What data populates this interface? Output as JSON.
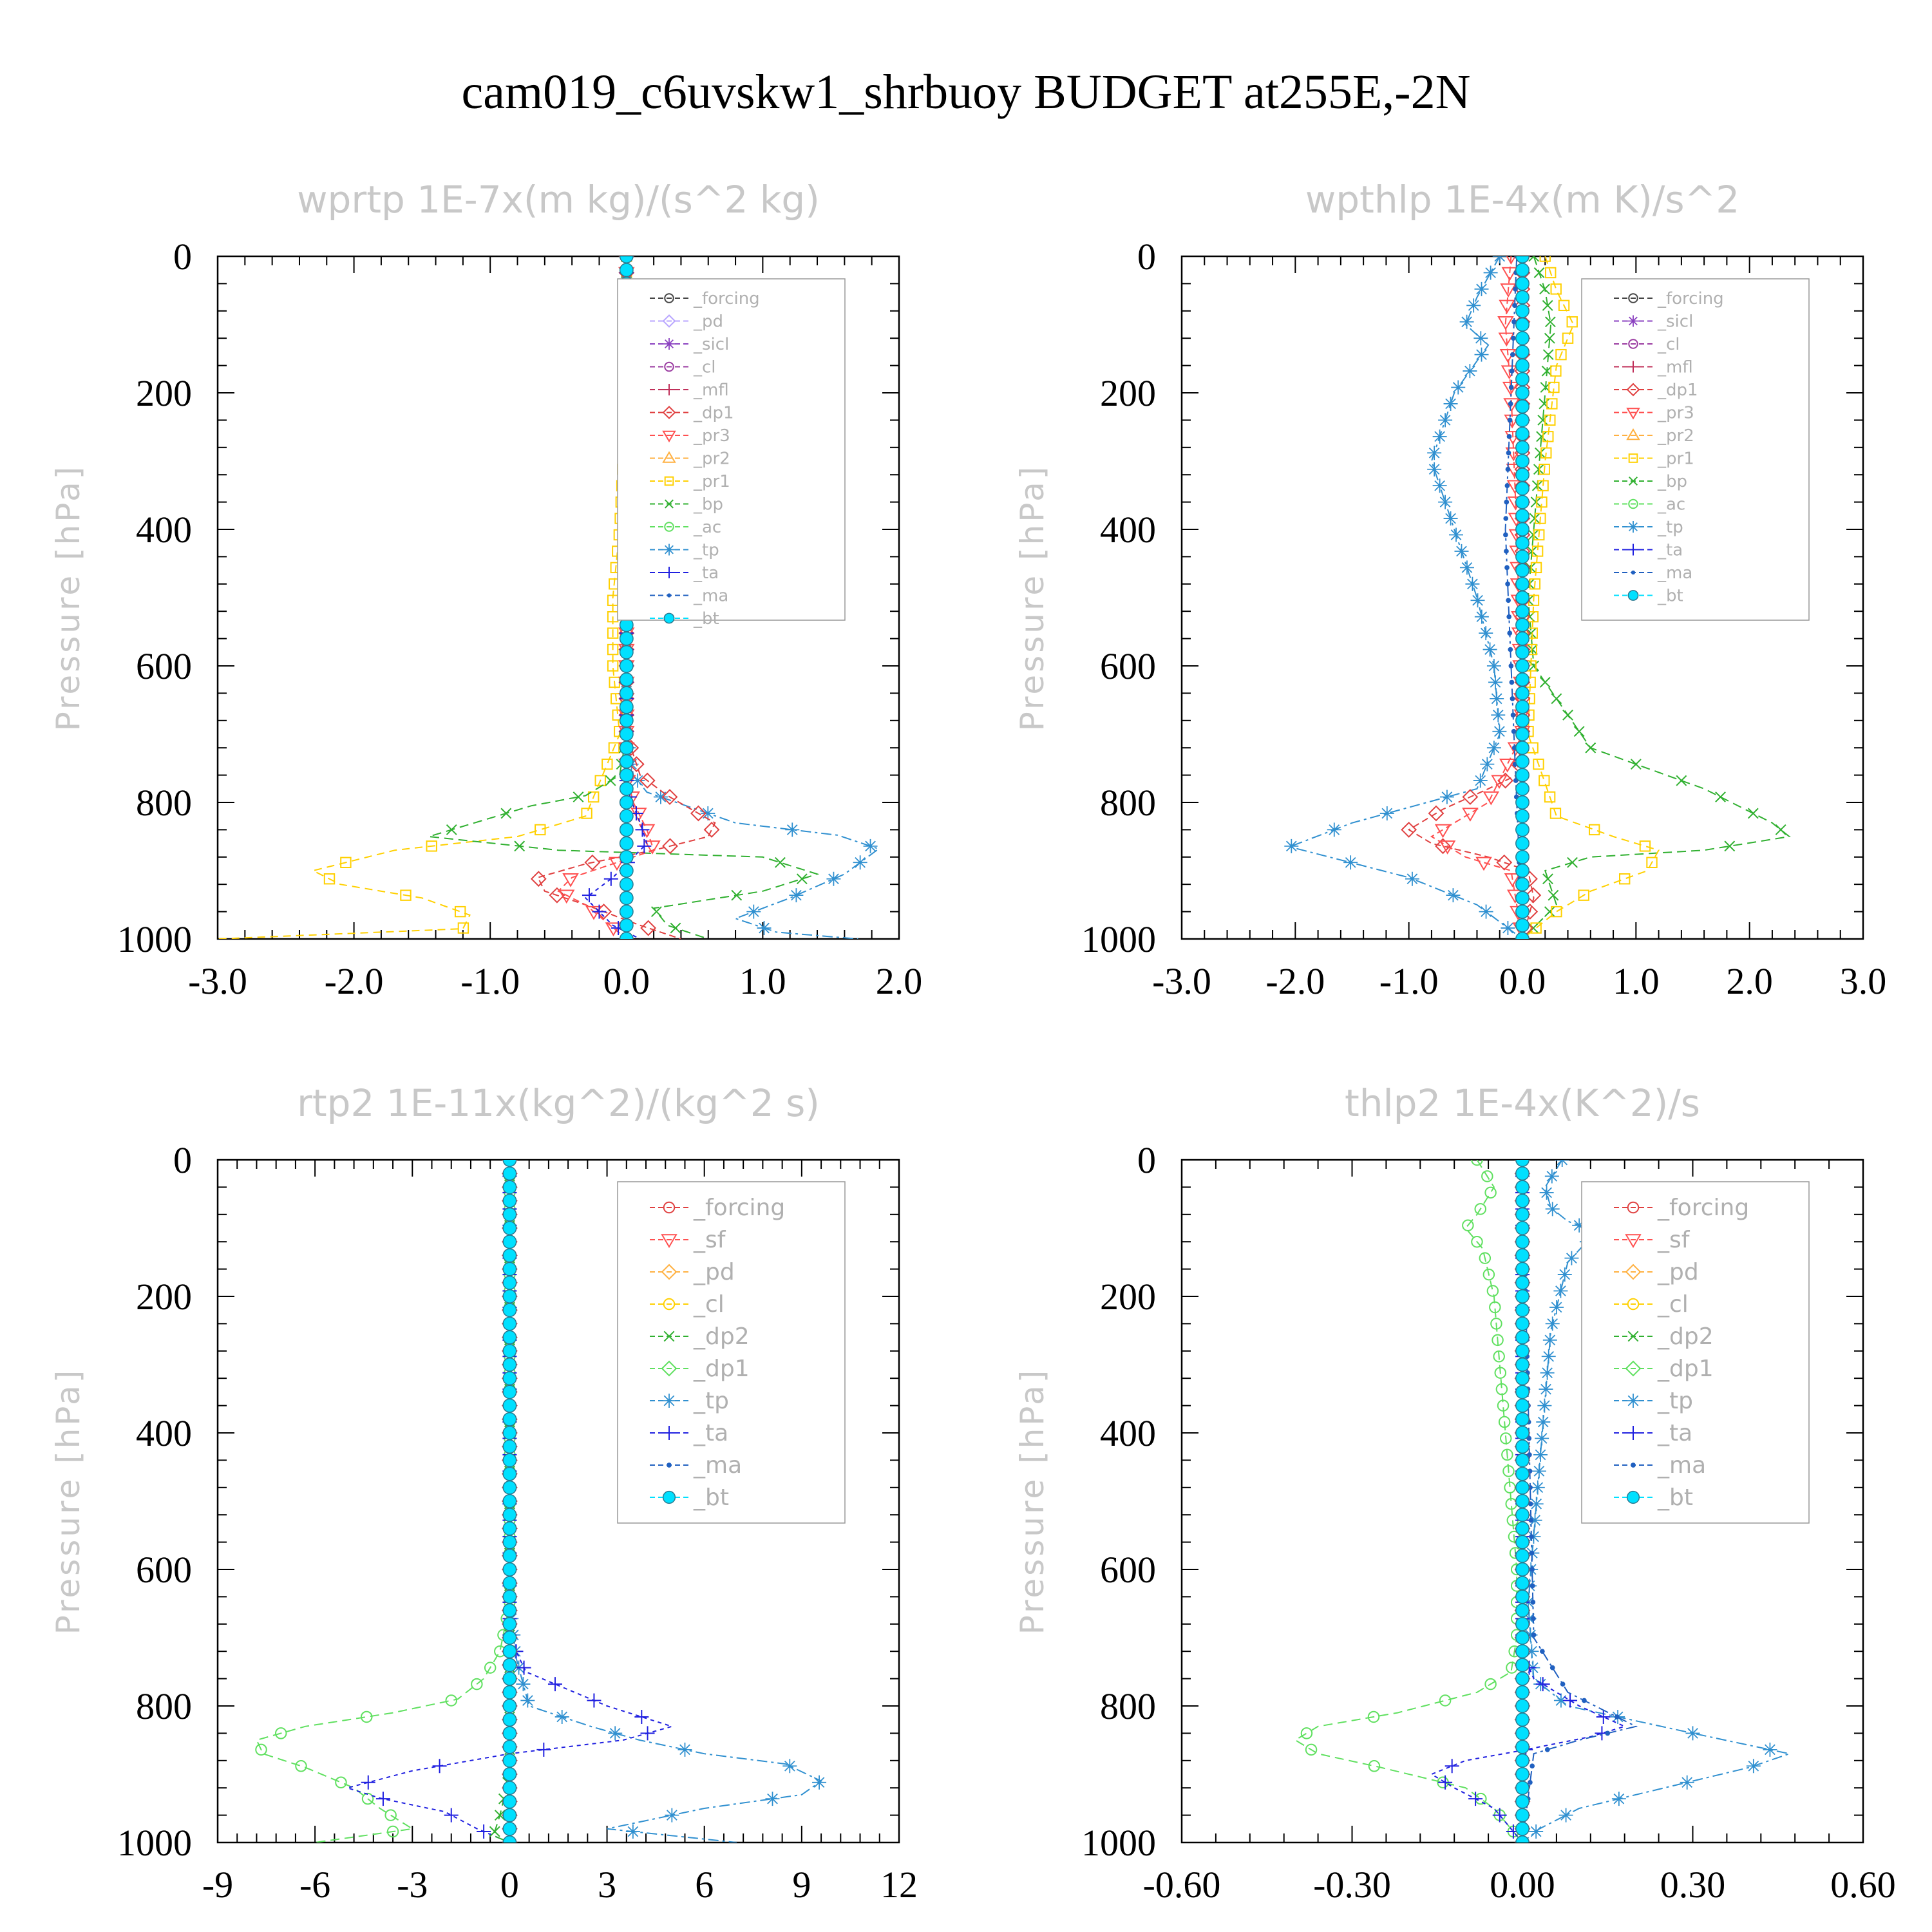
{
  "title": "cam019_c6uvskw1_shrbuoy  BUDGET at255E,-2N",
  "colors": {
    "forcing": "#444444",
    "pd": "#b9a6ff",
    "sicl": "#8a40c0",
    "cl": "#9a3aa0",
    "mfl": "#c0305a",
    "dp1": "#e04040",
    "pr3": "#ff5050",
    "pr2": "#ffb040",
    "pr1": "#ffd000",
    "bp": "#30b030",
    "ac": "#60e060",
    "tp": "#3090d0",
    "ta": "#2020e0",
    "ma": "#2060c0",
    "bt": "#00e0ff"
  },
  "chart_data": [
    {
      "type": "line",
      "title": "wprtp  1E-7x(m kg)/(s^2 kg)",
      "ylabel": "Pressure [hPa]",
      "xlim": [
        -3.0,
        2.0
      ],
      "ylim": [
        1000,
        0
      ],
      "xticks": [
        "-3.0",
        "-2.0",
        "-1.0",
        "0.0",
        "1.0",
        "2.0"
      ],
      "yticks": [
        "0",
        "200",
        "400",
        "600",
        "800",
        "1000"
      ],
      "legend": [
        "_forcing",
        "_pd",
        "_sicl",
        "_cl",
        "_mfl",
        "_dp1",
        "_pr3",
        "_pr2",
        "_pr1",
        "_bp",
        "_ac",
        "_tp",
        "_ta",
        "_ma",
        "_bt"
      ],
      "series": [
        {
          "name": "_pr1",
          "color": "pr1",
          "marker": "square",
          "dash": "12,8",
          "x": [
            0,
            0,
            -0.05,
            -0.1,
            -0.1,
            -0.05,
            -0.3,
            -0.8,
            -1.7,
            -2.3,
            -2.1,
            -1.5,
            -1.15,
            -1.2,
            -3.0
          ],
          "y": [
            0,
            200,
            400,
            500,
            600,
            700,
            820,
            850,
            870,
            900,
            920,
            940,
            965,
            985,
            1000
          ]
        },
        {
          "name": "_bp",
          "color": "bp",
          "marker": "x",
          "dash": "14,8",
          "x": [
            0,
            0,
            -0.05,
            -0.3,
            -0.7,
            -1.45,
            -0.5,
            1.0,
            1.4,
            1.0,
            0.2,
            0.3,
            0.6
          ],
          "y": [
            0,
            700,
            760,
            790,
            805,
            850,
            870,
            880,
            905,
            930,
            955,
            980,
            1000
          ]
        },
        {
          "name": "_tp",
          "color": "tp",
          "marker": "star",
          "dash": "16,6,4,6",
          "x": [
            0,
            0,
            0.05,
            0.15,
            0.8,
            1.55,
            1.85,
            1.6,
            1.2,
            0.8,
            1.1,
            1.7
          ],
          "y": [
            0,
            700,
            760,
            785,
            830,
            848,
            868,
            905,
            940,
            970,
            990,
            1000
          ]
        },
        {
          "name": "_dp1",
          "color": "dp1",
          "marker": "diamond",
          "dash": "10,6",
          "x": [
            0,
            0,
            0.1,
            0.3,
            0.65,
            0.6,
            0.2,
            -0.3,
            -0.65,
            -0.6,
            -0.3,
            0.1,
            0.4
          ],
          "y": [
            0,
            700,
            760,
            790,
            830,
            850,
            870,
            890,
            910,
            930,
            950,
            980,
            1000
          ]
        },
        {
          "name": "_pr3",
          "color": "pr3",
          "marker": "triangle-down",
          "dash": "10,6",
          "x": [
            0,
            0,
            0.05,
            0.15,
            0.2,
            -0.1,
            -0.4,
            -0.5,
            -0.3,
            0
          ],
          "y": [
            0,
            760,
            800,
            840,
            870,
            890,
            910,
            930,
            950,
            1000
          ]
        },
        {
          "name": "_ta",
          "color": "ta",
          "marker": "plus",
          "dash": "6,6",
          "x": [
            0,
            0,
            0.1,
            0.15,
            0.05,
            -0.1,
            -0.3,
            -0.2,
            -0.1,
            0.1
          ],
          "y": [
            0,
            780,
            830,
            860,
            880,
            910,
            940,
            960,
            980,
            1000
          ]
        },
        {
          "name": "_forcing",
          "color": "forcing",
          "marker": "circle-hollow",
          "dash": "",
          "x": [
            0,
            0
          ],
          "y": [
            0,
            1000
          ]
        },
        {
          "name": "_bt",
          "color": "bt",
          "marker": "circle-filled",
          "dash": "",
          "x": [
            0,
            0
          ],
          "y": [
            0,
            1000
          ]
        }
      ]
    },
    {
      "type": "line",
      "title": "wpthlp  1E-4x(m K)/s^2",
      "ylabel": "Pressure [hPa]",
      "xlim": [
        -3.0,
        3.0
      ],
      "ylim": [
        1000,
        0
      ],
      "xticks": [
        "-3.0",
        "-2.0",
        "-1.0",
        "0.0",
        "1.0",
        "2.0",
        "3.0"
      ],
      "yticks": [
        "0",
        "200",
        "400",
        "600",
        "800",
        "1000"
      ],
      "legend": [
        "_forcing",
        "_sicl",
        "_cl",
        "_mfl",
        "_dp1",
        "_pr3",
        "_pr2",
        "_pr1",
        "_bp",
        "_ac",
        "_tp",
        "_ta",
        "_ma",
        "_bt"
      ],
      "series": [
        {
          "name": "_tp",
          "color": "tp",
          "marker": "star",
          "dash": "16,6,4,6",
          "x": [
            -0.2,
            -0.4,
            -0.5,
            -0.3,
            -0.6,
            -0.8,
            -0.6,
            -0.4,
            -0.25,
            -0.2,
            -0.4,
            -1.5,
            -2.05,
            -1.7,
            -1.0,
            -0.4,
            0
          ],
          "y": [
            0,
            60,
            100,
            130,
            200,
            300,
            400,
            500,
            600,
            700,
            780,
            830,
            865,
            880,
            910,
            950,
            1000
          ]
        },
        {
          "name": "_bp",
          "color": "bp",
          "marker": "x",
          "dash": "14,8",
          "x": [
            0.1,
            0.2,
            0.25,
            0.2,
            0.15,
            0.1,
            0.05,
            0.1,
            0.6,
            1.6,
            2.2,
            2.35,
            1.6,
            0.6,
            0.2,
            0.3,
            0
          ],
          "y": [
            0,
            50,
            100,
            200,
            300,
            400,
            500,
            600,
            720,
            780,
            830,
            850,
            870,
            880,
            900,
            950,
            1000
          ]
        },
        {
          "name": "_pr1",
          "color": "pr1",
          "marker": "square",
          "dash": "12,8",
          "x": [
            0.2,
            0.3,
            0.45,
            0.3,
            0.2,
            0.15,
            0.1,
            0.05,
            0.3,
            0.8,
            1.2,
            1.1,
            0.6,
            0.3,
            0
          ],
          "y": [
            0,
            50,
            100,
            160,
            300,
            400,
            500,
            700,
            820,
            850,
            870,
            900,
            930,
            960,
            1000
          ]
        },
        {
          "name": "_dp1",
          "color": "dp1",
          "marker": "diamond",
          "dash": "10,6",
          "x": [
            0,
            0,
            -0.05,
            -0.3,
            -0.7,
            -1.0,
            -0.8,
            -0.3,
            0.05,
            0.1,
            0
          ],
          "y": [
            0,
            700,
            760,
            780,
            810,
            840,
            860,
            880,
            900,
            940,
            1000
          ]
        },
        {
          "name": "_pr3",
          "color": "pr3",
          "marker": "triangle-down",
          "dash": "10,6",
          "x": [
            -0.1,
            -0.15,
            -0.1,
            -0.05,
            0,
            -0.3,
            -0.8,
            -0.5,
            -0.1,
            0
          ],
          "y": [
            0,
            100,
            200,
            400,
            700,
            800,
            850,
            880,
            900,
            1000
          ]
        },
        {
          "name": "_ma",
          "color": "ma",
          "marker": "dot",
          "dash": "16,6,4,6",
          "x": [
            -0.05,
            -0.1,
            -0.15,
            -0.1,
            -0.05,
            0
          ],
          "y": [
            0,
            200,
            400,
            600,
            800,
            1000
          ]
        },
        {
          "name": "_cl",
          "color": "cl",
          "marker": "circle-hollow",
          "dash": "",
          "x": [
            0,
            0
          ],
          "y": [
            0,
            1000
          ]
        },
        {
          "name": "_bt",
          "color": "bt",
          "marker": "circle-filled",
          "dash": "",
          "x": [
            0,
            0
          ],
          "y": [
            0,
            1000
          ]
        }
      ]
    },
    {
      "type": "line",
      "title": "rtp2  1E-11x(kg^2)/(kg^2 s)",
      "ylabel": "Pressure [hPa]",
      "xlim": [
        -9,
        12
      ],
      "ylim": [
        1000,
        0
      ],
      "xticks": [
        "-9",
        "-6",
        "-3",
        "0",
        "3",
        "6",
        "9",
        "12"
      ],
      "yticks": [
        "0",
        "200",
        "400",
        "600",
        "800",
        "1000"
      ],
      "legend": [
        "_forcing",
        "_sf",
        "_pd",
        "_cl",
        "_dp2",
        "_dp1",
        "_tp",
        "_ta",
        "_ma",
        "_bt"
      ],
      "series": [
        {
          "name": "_dp1",
          "color": "ac",
          "marker": "circle-hollow",
          "dash": "14,8",
          "x": [
            0,
            0,
            -0.3,
            -0.8,
            -1.6,
            -3.6,
            -6.3,
            -7.8,
            -7.6,
            -6.3,
            -4.8,
            -4.0,
            -3.0,
            -6.0
          ],
          "y": [
            0,
            650,
            720,
            760,
            790,
            810,
            830,
            850,
            870,
            890,
            920,
            950,
            980,
            1000
          ]
        },
        {
          "name": "_tp",
          "color": "tp",
          "marker": "star",
          "dash": "16,6,4,6",
          "x": [
            0,
            0,
            0.2,
            0.6,
            2.5,
            4.0,
            6.0,
            8.5,
            9.6,
            9.0,
            6.0,
            3.0,
            7.0
          ],
          "y": [
            0,
            650,
            730,
            800,
            830,
            850,
            870,
            885,
            910,
            930,
            950,
            980,
            1000
          ]
        },
        {
          "name": "_ta",
          "color": "ta",
          "marker": "plus",
          "dash": "6,6",
          "x": [
            0,
            0,
            0.5,
            3.0,
            5.0,
            3.5,
            0,
            -3.0,
            -5.0,
            -4.0,
            -2.0,
            -1.0,
            0
          ],
          "y": [
            0,
            700,
            750,
            800,
            830,
            850,
            870,
            895,
            920,
            935,
            955,
            980,
            1000
          ]
        },
        {
          "name": "_dp2",
          "color": "bp",
          "marker": "x",
          "dash": "14,8",
          "x": [
            0,
            0,
            -0.3,
            -0.5,
            0
          ],
          "y": [
            0,
            900,
            960,
            990,
            1000
          ]
        },
        {
          "name": "_forcing",
          "color": "dp1",
          "marker": "diamond",
          "dash": "",
          "x": [
            0,
            0
          ],
          "y": [
            0,
            1000
          ]
        },
        {
          "name": "_bt",
          "color": "bt",
          "marker": "circle-filled",
          "dash": "",
          "x": [
            0,
            0
          ],
          "y": [
            0,
            1000
          ]
        }
      ]
    },
    {
      "type": "line",
      "title": "thlp2  1E-4x(K^2)/s",
      "ylabel": "Pressure [hPa]",
      "xlim": [
        -0.6,
        0.6
      ],
      "ylim": [
        1000,
        0
      ],
      "xticks": [
        "-0.60",
        "-0.30",
        "0.00",
        "0.30",
        "0.60"
      ],
      "yticks": [
        "0",
        "200",
        "400",
        "600",
        "800",
        "1000"
      ],
      "legend": [
        "_forcing",
        "_sf",
        "_pd",
        "_cl",
        "_dp2",
        "_dp1",
        "_tp",
        "_ta",
        "_ma",
        "_bt"
      ],
      "series": [
        {
          "name": "_dp1",
          "color": "ac",
          "marker": "circle-hollow",
          "dash": "14,8",
          "x": [
            -0.08,
            -0.05,
            -0.08,
            -0.1,
            -0.07,
            -0.05,
            -0.04,
            -0.03,
            -0.02,
            -0.01,
            -0.01,
            -0.02,
            -0.08,
            -0.22,
            -0.36,
            -0.4,
            -0.36,
            -0.25,
            -0.1,
            -0.05,
            0
          ],
          "y": [
            0,
            40,
            80,
            100,
            130,
            200,
            300,
            400,
            500,
            600,
            700,
            750,
            780,
            810,
            830,
            850,
            870,
            890,
            920,
            950,
            1000
          ]
        },
        {
          "name": "_tp",
          "color": "tp",
          "marker": "star",
          "dash": "16,6,4,6",
          "x": [
            0.07,
            0.04,
            0.05,
            0.08,
            0.13,
            0.08,
            0.05,
            0.04,
            0.03,
            0.02,
            0.01,
            0.02,
            0.08,
            0.3,
            0.47,
            0.4,
            0.25,
            0.1,
            0.03,
            0
          ],
          "y": [
            0,
            40,
            70,
            90,
            105,
            150,
            250,
            350,
            450,
            550,
            650,
            760,
            800,
            840,
            870,
            890,
            920,
            950,
            980,
            1000
          ]
        },
        {
          "name": "_ta",
          "color": "ta",
          "marker": "plus",
          "dash": "6,6",
          "x": [
            0,
            0,
            0.02,
            0.1,
            0.18,
            0.12,
            0,
            -0.1,
            -0.16,
            -0.12,
            -0.05,
            0
          ],
          "y": [
            0,
            720,
            760,
            800,
            830,
            845,
            865,
            880,
            900,
            920,
            950,
            1000
          ]
        },
        {
          "name": "_ma",
          "color": "ma",
          "marker": "dot",
          "dash": "16,6,4,6",
          "x": [
            0,
            0.02,
            0.08,
            0.2,
            0.1,
            0.02,
            0
          ],
          "y": [
            0,
            700,
            780,
            830,
            850,
            870,
            1000
          ]
        },
        {
          "name": "_forcing",
          "color": "dp1",
          "marker": "diamond",
          "dash": "",
          "x": [
            0,
            0
          ],
          "y": [
            0,
            1000
          ]
        },
        {
          "name": "_bt",
          "color": "bt",
          "marker": "circle-filled",
          "dash": "",
          "x": [
            0,
            0
          ],
          "y": [
            0,
            1000
          ]
        }
      ]
    }
  ]
}
